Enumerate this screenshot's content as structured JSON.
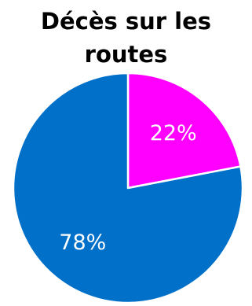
{
  "chart_data": {
    "type": "pie",
    "title_lines": [
      "Décès sur les",
      "routes"
    ],
    "slices": [
      {
        "value": 22,
        "label": "22%",
        "color": "#ff00ff"
      },
      {
        "value": 78,
        "label": "78%",
        "color": "#0070c9"
      }
    ],
    "start": "12 o'clock",
    "direction": "clockwise",
    "slice_separator_color": "#ffffff"
  }
}
